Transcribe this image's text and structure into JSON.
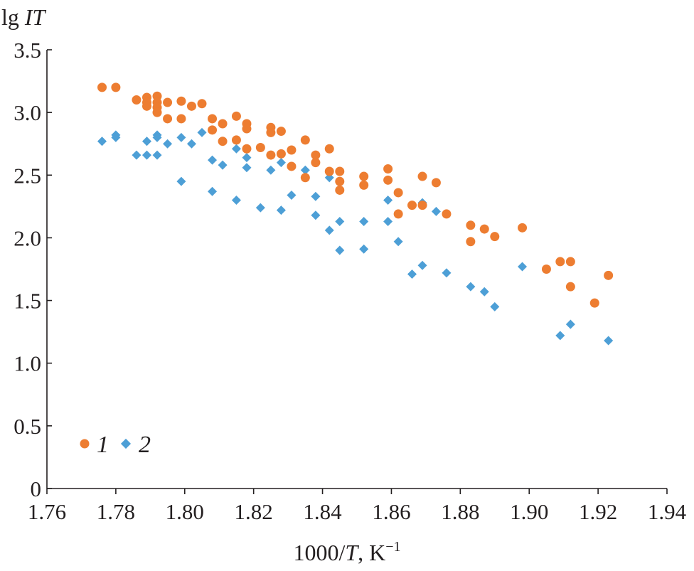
{
  "chart_data": {
    "type": "scatter",
    "title": "",
    "ylabel": {
      "prefix": "lg ",
      "italic": "IT"
    },
    "xlabel": {
      "prefix": "1000/",
      "italic": "T",
      "suffix": ", K",
      "sup": "−1"
    },
    "xlim": [
      1.76,
      1.94
    ],
    "ylim": [
      0,
      3.5
    ],
    "xticks": [
      1.76,
      1.78,
      1.8,
      1.82,
      1.84,
      1.86,
      1.88,
      1.9,
      1.92,
      1.94
    ],
    "xtick_labels": [
      "1.76",
      "1.78",
      "1.80",
      "1.82",
      "1.84",
      "1.86",
      "1.88",
      "1.90",
      "1.92",
      "1.94"
    ],
    "yticks": [
      0,
      0.5,
      1.0,
      1.5,
      2.0,
      2.5,
      3.0,
      3.5
    ],
    "ytick_labels": [
      "0",
      "0.5",
      "1.0",
      "1.5",
      "2.0",
      "2.5",
      "3.0",
      "3.5"
    ],
    "grid": false,
    "legend_position": "bottom-left",
    "series": [
      {
        "name": "1",
        "marker": "circle",
        "color": "#ed7d31",
        "points": [
          [
            1.776,
            3.2
          ],
          [
            1.78,
            3.2
          ],
          [
            1.786,
            3.1
          ],
          [
            1.789,
            3.12
          ],
          [
            1.789,
            3.08
          ],
          [
            1.789,
            3.05
          ],
          [
            1.792,
            3.13
          ],
          [
            1.792,
            3.08
          ],
          [
            1.792,
            3.04
          ],
          [
            1.792,
            3.0
          ],
          [
            1.795,
            3.08
          ],
          [
            1.795,
            2.95
          ],
          [
            1.799,
            3.09
          ],
          [
            1.799,
            2.95
          ],
          [
            1.802,
            3.05
          ],
          [
            1.805,
            3.07
          ],
          [
            1.808,
            2.95
          ],
          [
            1.808,
            2.86
          ],
          [
            1.811,
            2.91
          ],
          [
            1.811,
            2.77
          ],
          [
            1.815,
            2.97
          ],
          [
            1.815,
            2.78
          ],
          [
            1.818,
            2.91
          ],
          [
            1.818,
            2.87
          ],
          [
            1.818,
            2.71
          ],
          [
            1.822,
            2.72
          ],
          [
            1.825,
            2.88
          ],
          [
            1.825,
            2.84
          ],
          [
            1.825,
            2.66
          ],
          [
            1.828,
            2.85
          ],
          [
            1.828,
            2.67
          ],
          [
            1.831,
            2.7
          ],
          [
            1.831,
            2.57
          ],
          [
            1.835,
            2.78
          ],
          [
            1.835,
            2.48
          ],
          [
            1.838,
            2.66
          ],
          [
            1.838,
            2.6
          ],
          [
            1.842,
            2.71
          ],
          [
            1.842,
            2.53
          ],
          [
            1.845,
            2.53
          ],
          [
            1.845,
            2.45
          ],
          [
            1.845,
            2.38
          ],
          [
            1.852,
            2.49
          ],
          [
            1.852,
            2.42
          ],
          [
            1.859,
            2.55
          ],
          [
            1.859,
            2.46
          ],
          [
            1.862,
            2.36
          ],
          [
            1.862,
            2.19
          ],
          [
            1.866,
            2.26
          ],
          [
            1.869,
            2.49
          ],
          [
            1.869,
            2.26
          ],
          [
            1.873,
            2.44
          ],
          [
            1.876,
            2.19
          ],
          [
            1.883,
            2.1
          ],
          [
            1.883,
            1.97
          ],
          [
            1.887,
            2.07
          ],
          [
            1.89,
            2.01
          ],
          [
            1.898,
            2.08
          ],
          [
            1.905,
            1.75
          ],
          [
            1.909,
            1.81
          ],
          [
            1.912,
            1.81
          ],
          [
            1.912,
            1.61
          ],
          [
            1.919,
            1.48
          ],
          [
            1.923,
            1.7
          ]
        ]
      },
      {
        "name": "2",
        "marker": "diamond",
        "color": "#4d9fd6",
        "points": [
          [
            1.776,
            2.77
          ],
          [
            1.78,
            2.82
          ],
          [
            1.78,
            2.8
          ],
          [
            1.786,
            2.66
          ],
          [
            1.789,
            2.77
          ],
          [
            1.789,
            2.66
          ],
          [
            1.792,
            2.82
          ],
          [
            1.792,
            2.8
          ],
          [
            1.792,
            2.66
          ],
          [
            1.795,
            2.75
          ],
          [
            1.799,
            2.8
          ],
          [
            1.799,
            2.45
          ],
          [
            1.802,
            2.75
          ],
          [
            1.805,
            2.84
          ],
          [
            1.808,
            2.62
          ],
          [
            1.808,
            2.37
          ],
          [
            1.811,
            2.58
          ],
          [
            1.815,
            2.71
          ],
          [
            1.815,
            2.3
          ],
          [
            1.818,
            2.64
          ],
          [
            1.818,
            2.56
          ],
          [
            1.822,
            2.24
          ],
          [
            1.825,
            2.54
          ],
          [
            1.828,
            2.6
          ],
          [
            1.828,
            2.22
          ],
          [
            1.831,
            2.34
          ],
          [
            1.835,
            2.54
          ],
          [
            1.838,
            2.33
          ],
          [
            1.838,
            2.18
          ],
          [
            1.842,
            2.48
          ],
          [
            1.842,
            2.06
          ],
          [
            1.845,
            2.13
          ],
          [
            1.845,
            1.9
          ],
          [
            1.852,
            2.13
          ],
          [
            1.852,
            1.91
          ],
          [
            1.859,
            2.3
          ],
          [
            1.859,
            2.13
          ],
          [
            1.862,
            1.97
          ],
          [
            1.866,
            1.71
          ],
          [
            1.869,
            2.28
          ],
          [
            1.869,
            1.78
          ],
          [
            1.873,
            2.21
          ],
          [
            1.876,
            1.72
          ],
          [
            1.883,
            1.61
          ],
          [
            1.887,
            1.57
          ],
          [
            1.89,
            1.45
          ],
          [
            1.898,
            1.77
          ],
          [
            1.909,
            1.22
          ],
          [
            1.912,
            1.31
          ],
          [
            1.923,
            1.18
          ]
        ]
      }
    ]
  }
}
